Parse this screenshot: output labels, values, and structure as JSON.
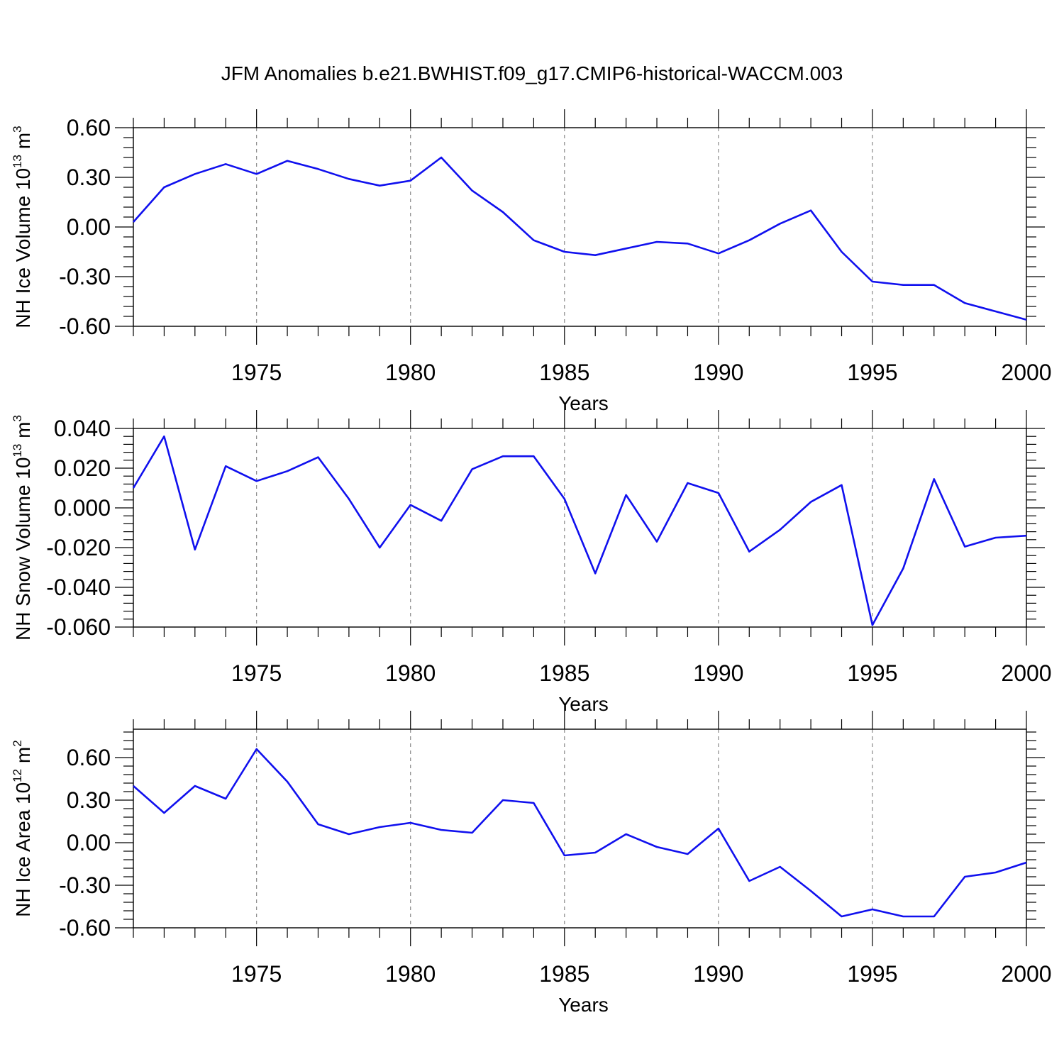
{
  "title": "JFM Anomalies b.e21.BWHIST.f09_g17.CMIP6-historical-WACCM.003",
  "colors": {
    "line": "#1010ee",
    "axis": "#000000",
    "grid": "#888888"
  },
  "chart_data": [
    {
      "type": "line",
      "ylabel_main": "NH Ice Volume 10",
      "ylabel_exp": "13",
      "ylabel_unit": " m",
      "ylabel_unit_exp": "3",
      "xlabel": "Years",
      "xlim": [
        1971,
        2000
      ],
      "ylim": [
        -0.6,
        0.6
      ],
      "xticks": [
        1975,
        1980,
        1985,
        1990,
        1995,
        2000
      ],
      "xtick_labels": [
        "1975",
        "1980",
        "1985",
        "1990",
        "1995",
        "2000"
      ],
      "yticks": [
        -0.6,
        -0.3,
        0.0,
        0.3,
        0.6
      ],
      "ytick_labels": [
        "-0.60",
        "-0.30",
        "0.00",
        "0.30",
        "0.60"
      ],
      "grid": "vertical dashed at major x ticks",
      "x": [
        1971,
        1972,
        1973,
        1974,
        1975,
        1976,
        1977,
        1978,
        1979,
        1980,
        1981,
        1982,
        1983,
        1984,
        1985,
        1986,
        1987,
        1988,
        1989,
        1990,
        1991,
        1992,
        1993,
        1994,
        1995,
        1996,
        1997,
        1998,
        1999,
        2000
      ],
      "y": [
        0.03,
        0.24,
        0.32,
        0.38,
        0.32,
        0.4,
        0.35,
        0.29,
        0.25,
        0.28,
        0.42,
        0.22,
        0.09,
        -0.08,
        -0.15,
        -0.17,
        -0.13,
        -0.09,
        -0.1,
        -0.16,
        -0.08,
        0.02,
        0.1,
        -0.15,
        -0.33,
        -0.35,
        -0.35,
        -0.46,
        -0.51,
        -0.56
      ]
    },
    {
      "type": "line",
      "ylabel_main": "NH Snow Volume 10",
      "ylabel_exp": "13",
      "ylabel_unit": " m",
      "ylabel_unit_exp": "3",
      "xlabel": "Years",
      "xlim": [
        1971,
        2000
      ],
      "ylim": [
        -0.06,
        0.04
      ],
      "xticks": [
        1975,
        1980,
        1985,
        1990,
        1995,
        2000
      ],
      "xtick_labels": [
        "1975",
        "1980",
        "1985",
        "1990",
        "1995",
        "2000"
      ],
      "yticks": [
        -0.06,
        -0.04,
        -0.02,
        0.0,
        0.02,
        0.04
      ],
      "ytick_labels": [
        "-0.060",
        "-0.040",
        "-0.020",
        "0.000",
        "0.020",
        "0.040"
      ],
      "grid": "vertical dashed at major x ticks",
      "x": [
        1971,
        1972,
        1973,
        1974,
        1975,
        1976,
        1977,
        1978,
        1979,
        1980,
        1981,
        1982,
        1983,
        1984,
        1985,
        1986,
        1987,
        1988,
        1989,
        1990,
        1991,
        1992,
        1993,
        1994,
        1995,
        1996,
        1997,
        1998,
        1999,
        2000
      ],
      "y": [
        0.01,
        0.036,
        -0.021,
        0.021,
        0.0135,
        0.0185,
        0.0255,
        0.0045,
        -0.02,
        0.0015,
        -0.0065,
        0.0195,
        0.026,
        0.026,
        0.0045,
        -0.033,
        0.0065,
        -0.017,
        0.0125,
        0.0075,
        -0.022,
        -0.011,
        0.003,
        0.0115,
        -0.059,
        -0.0305,
        0.0145,
        -0.0195,
        -0.015,
        -0.014
      ]
    },
    {
      "type": "line",
      "ylabel_main": "NH Ice Area 10",
      "ylabel_exp": "12",
      "ylabel_unit": " m",
      "ylabel_unit_exp": "2",
      "xlabel": "Years",
      "xlim": [
        1971,
        2000
      ],
      "ylim": [
        -0.6,
        0.8
      ],
      "xticks": [
        1975,
        1980,
        1985,
        1990,
        1995,
        2000
      ],
      "xtick_labels": [
        "1975",
        "1980",
        "1985",
        "1990",
        "1995",
        "2000"
      ],
      "yticks": [
        -0.6,
        -0.3,
        0.0,
        0.3,
        0.6
      ],
      "ytick_labels": [
        "-0.60",
        "-0.30",
        "0.00",
        "0.30",
        "0.60"
      ],
      "grid": "vertical dashed at major x ticks",
      "x": [
        1971,
        1972,
        1973,
        1974,
        1975,
        1976,
        1977,
        1978,
        1979,
        1980,
        1981,
        1982,
        1983,
        1984,
        1985,
        1986,
        1987,
        1988,
        1989,
        1990,
        1991,
        1992,
        1993,
        1994,
        1995,
        1996,
        1997,
        1998,
        1999,
        2000
      ],
      "y": [
        0.4,
        0.21,
        0.4,
        0.31,
        0.66,
        0.43,
        0.13,
        0.06,
        0.11,
        0.14,
        0.09,
        0.07,
        0.3,
        0.28,
        -0.09,
        -0.07,
        0.06,
        -0.03,
        -0.08,
        0.1,
        -0.27,
        -0.17,
        -0.34,
        -0.52,
        -0.47,
        -0.52,
        -0.52,
        -0.24,
        -0.21,
        -0.14
      ]
    }
  ]
}
